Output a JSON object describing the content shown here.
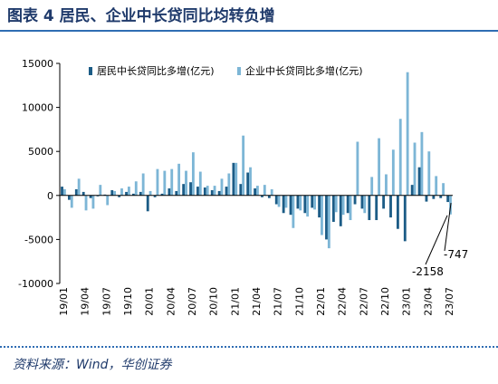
{
  "header": {
    "title": "图表 4   居民、企业中长贷同比均转负增"
  },
  "footer": {
    "source": "资料来源：Wind，华创证券"
  },
  "colors": {
    "resident": "#1c5c86",
    "enterprise": "#7db6d6",
    "title": "#1f3a6b",
    "rule": "#2f6db3"
  },
  "chart_data": {
    "type": "bar",
    "title": "",
    "xlabel": "",
    "ylabel": "",
    "ylim": [
      -10000,
      15000
    ],
    "yticks": [
      -10000,
      -5000,
      0,
      5000,
      10000,
      15000
    ],
    "xtick_labels": [
      "19/01",
      "19/04",
      "19/07",
      "19/10",
      "20/01",
      "20/04",
      "20/07",
      "20/10",
      "21/01",
      "21/04",
      "21/07",
      "21/10",
      "22/01",
      "22/04",
      "22/07",
      "22/10",
      "23/01",
      "23/04",
      "23/07"
    ],
    "xtick_every": 3,
    "categories": [
      "19/01",
      "19/02",
      "19/03",
      "19/04",
      "19/05",
      "19/06",
      "19/07",
      "19/08",
      "19/09",
      "19/10",
      "19/11",
      "19/12",
      "20/01",
      "20/02",
      "20/03",
      "20/04",
      "20/05",
      "20/06",
      "20/07",
      "20/08",
      "20/09",
      "20/10",
      "20/11",
      "20/12",
      "21/01",
      "21/02",
      "21/03",
      "21/04",
      "21/05",
      "21/06",
      "21/07",
      "21/08",
      "21/09",
      "21/10",
      "21/11",
      "21/12",
      "22/01",
      "22/02",
      "22/03",
      "22/04",
      "22/05",
      "22/06",
      "22/07",
      "22/08",
      "22/09",
      "22/10",
      "22/11",
      "22/12",
      "23/01",
      "23/02",
      "23/03",
      "23/04",
      "23/05",
      "23/06",
      "23/07"
    ],
    "legend_position": "top",
    "series": [
      {
        "name": "居民中长贷同比多增(亿元)",
        "values": [
          1000,
          -500,
          700,
          400,
          -300,
          -100,
          100,
          600,
          -200,
          400,
          200,
          400,
          -1800,
          -200,
          200,
          800,
          500,
          1300,
          1500,
          1000,
          900,
          600,
          500,
          1000,
          3700,
          1300,
          2600,
          800,
          -200,
          -300,
          -1000,
          -2000,
          -2200,
          -1500,
          -2000,
          -1400,
          -2500,
          -5000,
          -3000,
          -3500,
          -2000,
          -1000,
          -1500,
          -2800,
          -2800,
          -1500,
          -2500,
          -3800,
          -5200,
          1200,
          3200,
          -700,
          -400,
          -300,
          -747
        ]
      },
      {
        "name": "企业中长贷同比多增(亿元)",
        "values": [
          700,
          -1400,
          1900,
          -1700,
          -1500,
          1200,
          -1100,
          500,
          800,
          1000,
          1600,
          2500,
          500,
          3000,
          2800,
          3000,
          3600,
          2800,
          4900,
          2700,
          1100,
          1100,
          1900,
          2500,
          3700,
          6800,
          3200,
          1100,
          1200,
          700,
          -1300,
          -1400,
          -3700,
          -1700,
          -2400,
          -1600,
          -4500,
          -6000,
          -1900,
          -2200,
          -2800,
          6100,
          -2000,
          2100,
          6500,
          2400,
          5200,
          8700,
          14000,
          6000,
          7200,
          5000,
          2200,
          1400,
          -2158
        ]
      }
    ],
    "annotations": [
      "-747",
      "-2158"
    ]
  }
}
